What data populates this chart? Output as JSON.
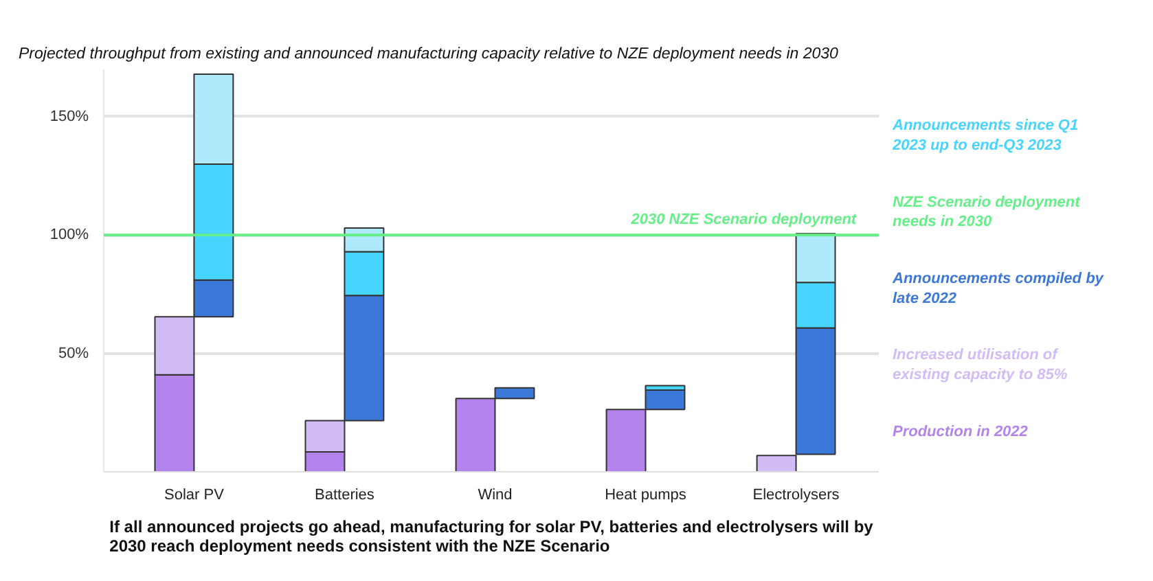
{
  "chart_data": {
    "type": "bar",
    "stacked": true,
    "title": "Projected throughput from existing and announced manufacturing capacity relative to NZE deployment needs in 2030",
    "categories": [
      "Solar PV",
      "Batteries",
      "Wind",
      "Heat pumps",
      "Electrolysers"
    ],
    "series": [
      {
        "name": "Production in 2022",
        "color": "#b384ec",
        "values": [
          41,
          8.4,
          31,
          26.3,
          null
        ]
      },
      {
        "name": "Increased utilisation of existing capacity to 85%",
        "color": "#d2bcf6",
        "values": [
          24.5,
          13.2,
          null,
          null,
          6.9
        ]
      },
      {
        "name": "Announcements compiled by late 2022",
        "color": "#3c78d8",
        "base": [
          65.5,
          21.6,
          31,
          26.3,
          7.4
        ],
        "values": [
          15.5,
          52.9,
          4.5,
          8.2,
          53.4
        ]
      },
      {
        "name": "Announcements since Q1 2023 up to end-Q3 2023",
        "color": "#47d4ff",
        "base": [
          81,
          74.5,
          null,
          34.5,
          60.8
        ],
        "values": [
          49,
          18.5,
          null,
          1.9,
          19.2
        ]
      },
      {
        "color": "#aeeafc",
        "base": [
          130,
          93,
          null,
          null,
          80
        ],
        "values": [
          38,
          10,
          null,
          null,
          20.6
        ]
      }
    ],
    "ylim": [
      0,
      170
    ],
    "yticks": [
      {
        "value": 0,
        "label": null
      },
      {
        "value": 50,
        "label": "50%"
      },
      {
        "value": 100,
        "label": "100%"
      },
      {
        "value": 150,
        "label": "150%"
      }
    ],
    "grid": "y",
    "legend": "right",
    "ref_lines": [
      {
        "axis": "y",
        "value": 100,
        "label": "2030 NZE Scenario deployment",
        "color": "#66ee88"
      }
    ],
    "annotations": [
      "If all announced projects go ahead, manufacturing for solar PV, batteries and electrolysers will by 2030 reach deployment needs consistent with the NZE Scenario",
      "NZE Scenario deployment needs in 2030"
    ]
  }
}
